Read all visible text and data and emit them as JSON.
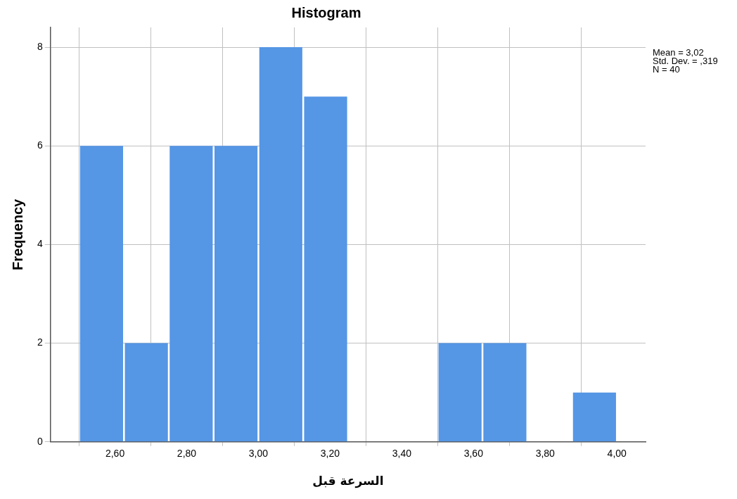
{
  "chart_data": {
    "type": "histogram",
    "title": "Histogram",
    "xlabel": "السرعة قبل",
    "ylabel": "Frequency",
    "bins": [
      2.5,
      2.625,
      2.75,
      2.875,
      3.0,
      3.125,
      3.25,
      3.375,
      3.5,
      3.625,
      3.75,
      3.875,
      4.0
    ],
    "values": [
      6,
      2,
      6,
      6,
      8,
      7,
      0,
      0,
      2,
      2,
      0,
      1
    ],
    "color": "#5596e5",
    "xlim": [
      2.42,
      4.08
    ],
    "xticks": [
      {
        "value": 2.6,
        "label": "2,60"
      },
      {
        "value": 2.8,
        "label": "2,80"
      },
      {
        "value": 3.0,
        "label": "3,00"
      },
      {
        "value": 3.2,
        "label": "3,20"
      },
      {
        "value": 3.4,
        "label": "3,40"
      },
      {
        "value": 3.6,
        "label": "3,60"
      },
      {
        "value": 3.8,
        "label": "3,80"
      },
      {
        "value": 4.0,
        "label": "4,00"
      }
    ],
    "ylim": [
      0,
      8.4
    ],
    "yticks": [
      0,
      2,
      4,
      6,
      8
    ],
    "grid": true,
    "legend": false,
    "annotations": [
      "Mean = 3,02",
      "Std. Dev. = ,319",
      "N = 40"
    ]
  }
}
